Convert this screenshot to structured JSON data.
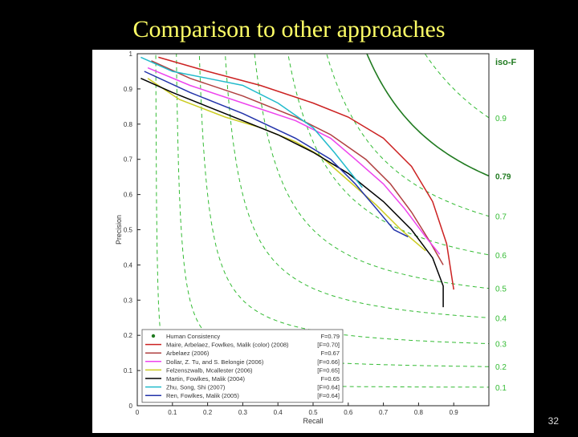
{
  "slide": {
    "title": "Comparison to other approaches",
    "page_number": "32"
  },
  "chart_data": {
    "type": "line",
    "xlabel": "Recall",
    "ylabel": "Precision",
    "xlim": [
      0,
      1
    ],
    "ylim": [
      0,
      1
    ],
    "x_ticks": [
      "0",
      "0.1",
      "0.2",
      "0.3",
      "0.4",
      "0.5",
      "0.6",
      "0.7",
      "0.8",
      "0.9"
    ],
    "y_ticks": [
      "0",
      "0.1",
      "0.2",
      "0.3",
      "0.4",
      "0.5",
      "0.6",
      "0.7",
      "0.8",
      "0.9",
      "1"
    ],
    "grid": false,
    "legend_position": "bottom-left",
    "isoF_label": "iso-F",
    "isoF_curves": [
      {
        "f": 0.1,
        "label": "0.1",
        "color": "#33bb33"
      },
      {
        "f": 0.2,
        "label": "0.2",
        "color": "#33bb33"
      },
      {
        "f": 0.3,
        "label": "0.3",
        "color": "#33bb33"
      },
      {
        "f": 0.4,
        "label": "0.4",
        "color": "#33bb33"
      },
      {
        "f": 0.5,
        "label": "0.5",
        "color": "#33bb33"
      },
      {
        "f": 0.6,
        "label": "0.6",
        "color": "#33bb33"
      },
      {
        "f": 0.7,
        "label": "0.7",
        "color": "#33bb33"
      },
      {
        "f": 0.79,
        "label": "0.79",
        "color": "#1f7a1f",
        "bold": true
      },
      {
        "f": 0.9,
        "label": "0.9",
        "color": "#33bb33"
      }
    ],
    "series": [
      {
        "name": "Human Consistency",
        "score": "F=0.79",
        "color": "#1f7a1f",
        "marker": true,
        "x": [],
        "y": []
      },
      {
        "name": "Maire, Arbelaez, Fowlkes, Malik (color) (2008)",
        "score": "[F=0.70]",
        "color": "#cc2222",
        "x": [
          0.06,
          0.2,
          0.35,
          0.5,
          0.6,
          0.7,
          0.78,
          0.84,
          0.88,
          0.9
        ],
        "y": [
          0.99,
          0.95,
          0.91,
          0.86,
          0.82,
          0.76,
          0.68,
          0.58,
          0.46,
          0.33
        ]
      },
      {
        "name": "Arbelaez (2006)",
        "score": "F=0.67",
        "color": "#b04040",
        "x": [
          0.04,
          0.15,
          0.3,
          0.45,
          0.55,
          0.65,
          0.72,
          0.78,
          0.83,
          0.87
        ],
        "y": [
          0.98,
          0.93,
          0.88,
          0.82,
          0.77,
          0.7,
          0.63,
          0.55,
          0.47,
          0.4
        ]
      },
      {
        "name": "Dollar, Z. Tu, and S. Belongie (2006)",
        "score": "[F=0.66]",
        "color": "#ee44ee",
        "x": [
          0.03,
          0.15,
          0.3,
          0.45,
          0.55,
          0.62,
          0.7,
          0.76,
          0.82,
          0.86
        ],
        "y": [
          0.96,
          0.91,
          0.86,
          0.81,
          0.76,
          0.7,
          0.63,
          0.56,
          0.48,
          0.43
        ]
      },
      {
        "name": "Felzenszwalb, Mcallester (2006)",
        "score": "[F=0.65]",
        "color": "#cccc22",
        "x": [
          0.03,
          0.12,
          0.25,
          0.35,
          0.45,
          0.52,
          0.6,
          0.68,
          0.75,
          0.82
        ],
        "y": [
          0.93,
          0.87,
          0.82,
          0.79,
          0.75,
          0.71,
          0.64,
          0.57,
          0.5,
          0.44
        ]
      },
      {
        "name": "Martin, Fowlkes, Malik (2004)",
        "score": "F=0.65",
        "color": "#000000",
        "x": [
          0.01,
          0.1,
          0.2,
          0.3,
          0.4,
          0.5,
          0.6,
          0.7,
          0.78,
          0.84,
          0.87,
          0.87
        ],
        "y": [
          0.93,
          0.89,
          0.85,
          0.81,
          0.77,
          0.72,
          0.66,
          0.58,
          0.5,
          0.42,
          0.34,
          0.28
        ]
      },
      {
        "name": "Zhu, Song, Shi (2007)",
        "score": "[F=0.64]",
        "color": "#22bbcc",
        "x": [
          0.01,
          0.1,
          0.2,
          0.3,
          0.4,
          0.5,
          0.56,
          0.6,
          0.64
        ],
        "y": [
          0.99,
          0.95,
          0.93,
          0.91,
          0.86,
          0.79,
          0.72,
          0.67,
          0.62
        ]
      },
      {
        "name": "Ren, Fowlkes, Malik (2005)",
        "score": "[F=0.64]",
        "color": "#2233aa",
        "x": [
          0.02,
          0.15,
          0.3,
          0.45,
          0.55,
          0.62,
          0.68,
          0.73,
          0.77
        ],
        "y": [
          0.95,
          0.89,
          0.83,
          0.76,
          0.7,
          0.63,
          0.56,
          0.5,
          0.48
        ]
      }
    ]
  }
}
